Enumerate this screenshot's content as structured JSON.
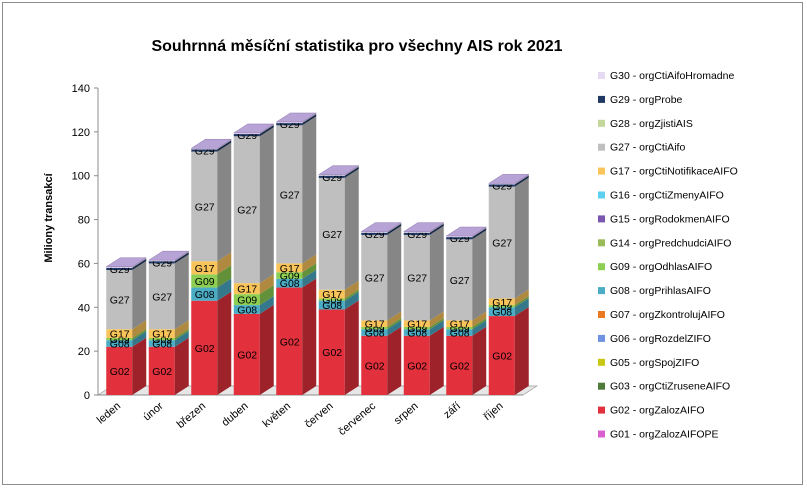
{
  "chart_data": {
    "type": "bar",
    "stacked": true,
    "three_d": true,
    "title": "Souhrnná měsíční statistika pro všechny AIS  rok 2021",
    "ylabel": "Miliony transakcí",
    "xlabel": "",
    "ylim": [
      0,
      140
    ],
    "yticks": [
      "0",
      "20",
      "40",
      "60",
      "80",
      "100",
      "120",
      "140"
    ],
    "grid": false,
    "legend_position": "right",
    "categories": [
      "leden",
      "únor",
      "březen",
      "duben",
      "květen",
      "červen",
      "červenec",
      "srpen",
      "září",
      "říjen"
    ],
    "legend": [
      {
        "label": "G30 - orgCtiAifoHromadne",
        "color": "#e6d9f2"
      },
      {
        "label": "G29 - orgProbe",
        "color": "#1f3864"
      },
      {
        "label": "G28 - orgZjistiAIS",
        "color": "#c4d79b"
      },
      {
        "label": "G27 - orgCtiAifo",
        "color": "#bfbfbf"
      },
      {
        "label": "G17 - orgCtiNotifikaceAIFO",
        "color": "#f9c45a"
      },
      {
        "label": "G16 - orgCtiZmenyAIFO",
        "color": "#5bd0f0"
      },
      {
        "label": "G15 - orgRodokmenAIFO",
        "color": "#7a56b0"
      },
      {
        "label": "G14 - orgPredchudciAIFO",
        "color": "#9bbb59"
      },
      {
        "label": "G09 - orgOdhlasAIFO",
        "color": "#8ccf52"
      },
      {
        "label": "G08 - orgPrihlasAIFO",
        "color": "#4bacc6"
      },
      {
        "label": "G07 - orgZkontrolujAIFO",
        "color": "#e97a1f"
      },
      {
        "label": "G06 - orgRozdelZIFO",
        "color": "#6f93e0"
      },
      {
        "label": "G05 - orgSpojZIFO",
        "color": "#c8c814"
      },
      {
        "label": "G03 - orgCtiZruseneAIFO",
        "color": "#4f7a3a"
      },
      {
        "label": "G02 - orgZalozAIFO",
        "color": "#e2313c"
      },
      {
        "label": "G01 - orgZalozAIFOPE",
        "color": "#d95fd0"
      }
    ],
    "series": [
      {
        "name": "G02",
        "color": "#e2313c",
        "values": [
          22,
          22,
          43,
          37,
          49,
          39,
          27,
          27,
          27,
          36
        ]
      },
      {
        "name": "G08",
        "color": "#4bacc6",
        "values": [
          3,
          3,
          6,
          4,
          4,
          4,
          3,
          3,
          3,
          4
        ]
      },
      {
        "name": "G09",
        "color": "#8ccf52",
        "values": [
          1,
          1,
          6,
          5,
          3,
          1,
          1,
          1,
          1,
          1
        ]
      },
      {
        "name": "G17",
        "color": "#f9c45a",
        "values": [
          4,
          4,
          6,
          5,
          4,
          4,
          3,
          3,
          3,
          3
        ]
      },
      {
        "name": "G27",
        "color": "#bfbfbf",
        "values": [
          27,
          30,
          50,
          67,
          63,
          51,
          39,
          39,
          37,
          51
        ]
      },
      {
        "name": "G29",
        "color": "#1f3864",
        "values": [
          1,
          1,
          1,
          1,
          1,
          1,
          1,
          1,
          1,
          1
        ]
      },
      {
        "name": "G30",
        "color": "#e6d9f2",
        "values": [
          0.5,
          0.5,
          0.5,
          0.5,
          0.5,
          0.5,
          0.5,
          0.5,
          0.5,
          0.5
        ]
      }
    ],
    "segment_labels": [
      [
        "G02",
        "G08",
        "G09",
        "G17",
        "G27",
        "G29"
      ],
      [
        "G02",
        "G08",
        "G09",
        "G17",
        "G27",
        "G29"
      ],
      [
        "G02",
        "G08",
        "G09",
        "G17",
        "G27",
        "G29"
      ],
      [
        "G02",
        "G08",
        "G09",
        "G17",
        "G27",
        "G29"
      ],
      [
        "G02",
        "G08",
        "G09",
        "G17",
        "G27",
        "G29"
      ],
      [
        "G02",
        "G08",
        "G09",
        "G17",
        "G27",
        "G29"
      ],
      [
        "G02",
        "G08",
        "G09",
        "G17",
        "G27",
        "G29"
      ],
      [
        "G02",
        "G08",
        "G09",
        "G17",
        "G27",
        "G29"
      ],
      [
        "G02",
        "G08",
        "G09",
        "G17",
        "G27",
        "G29"
      ],
      [
        "G02",
        "G08",
        "G09",
        "G17",
        "G27",
        "G29"
      ]
    ]
  }
}
